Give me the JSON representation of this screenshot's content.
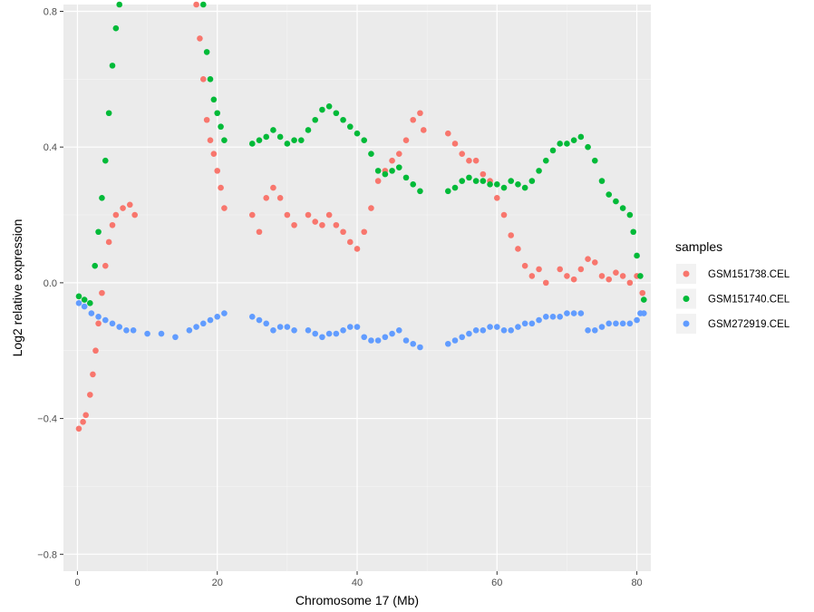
{
  "chart_data": {
    "type": "scatter",
    "xlabel": "Chromosome 17 (Mb)",
    "ylabel": "Log2 relative expression",
    "xlim": [
      -2,
      82
    ],
    "ylim": [
      -0.85,
      0.82
    ],
    "x_ticks": [
      0,
      20,
      40,
      60,
      80
    ],
    "y_ticks": [
      -0.8,
      -0.4,
      0.0,
      0.4,
      0.8
    ],
    "x_tick_labels": [
      "0",
      "20",
      "40",
      "60",
      "80"
    ],
    "y_tick_labels": [
      "−0.8",
      "−0.4",
      "0.0",
      "0.4",
      "0.8"
    ],
    "grid": true,
    "legend": {
      "title": "samples",
      "placement": "right"
    },
    "series": [
      {
        "name": "GSM151738.CEL",
        "color": "#F8766D",
        "points": [
          [
            0.2,
            -0.43
          ],
          [
            0.8,
            -0.41
          ],
          [
            1.2,
            -0.39
          ],
          [
            1.8,
            -0.33
          ],
          [
            2.2,
            -0.27
          ],
          [
            2.6,
            -0.2
          ],
          [
            3.0,
            -0.12
          ],
          [
            3.5,
            -0.03
          ],
          [
            4.0,
            0.05
          ],
          [
            4.5,
            0.12
          ],
          [
            5.0,
            0.17
          ],
          [
            5.5,
            0.2
          ],
          [
            6.5,
            0.22
          ],
          [
            7.5,
            0.23
          ],
          [
            8.2,
            0.2
          ],
          [
            17.0,
            0.82
          ],
          [
            17.5,
            0.72
          ],
          [
            18.0,
            0.6
          ],
          [
            18.5,
            0.48
          ],
          [
            19.0,
            0.42
          ],
          [
            19.5,
            0.38
          ],
          [
            20.0,
            0.33
          ],
          [
            20.5,
            0.28
          ],
          [
            21.0,
            0.22
          ],
          [
            25.0,
            0.2
          ],
          [
            26.0,
            0.15
          ],
          [
            27.0,
            0.25
          ],
          [
            28.0,
            0.28
          ],
          [
            29.0,
            0.25
          ],
          [
            30.0,
            0.2
          ],
          [
            31.0,
            0.17
          ],
          [
            33.0,
            0.2
          ],
          [
            34.0,
            0.18
          ],
          [
            35.0,
            0.17
          ],
          [
            36.0,
            0.2
          ],
          [
            37.0,
            0.17
          ],
          [
            38.0,
            0.15
          ],
          [
            39.0,
            0.12
          ],
          [
            40.0,
            0.1
          ],
          [
            41.0,
            0.15
          ],
          [
            42.0,
            0.22
          ],
          [
            43.0,
            0.3
          ],
          [
            44.0,
            0.33
          ],
          [
            45.0,
            0.36
          ],
          [
            46.0,
            0.38
          ],
          [
            47.0,
            0.42
          ],
          [
            48.0,
            0.48
          ],
          [
            49.0,
            0.5
          ],
          [
            49.5,
            0.45
          ],
          [
            53.0,
            0.44
          ],
          [
            54.0,
            0.41
          ],
          [
            55.0,
            0.38
          ],
          [
            56.0,
            0.36
          ],
          [
            57.0,
            0.36
          ],
          [
            58.0,
            0.32
          ],
          [
            59.0,
            0.3
          ],
          [
            60.0,
            0.25
          ],
          [
            61.0,
            0.2
          ],
          [
            62.0,
            0.14
          ],
          [
            63.0,
            0.1
          ],
          [
            64.0,
            0.05
          ],
          [
            65.0,
            0.02
          ],
          [
            66.0,
            0.04
          ],
          [
            67.0,
            0.0
          ],
          [
            69.0,
            0.04
          ],
          [
            70.0,
            0.02
          ],
          [
            71.0,
            0.01
          ],
          [
            72.0,
            0.04
          ],
          [
            73.0,
            0.07
          ],
          [
            74.0,
            0.06
          ],
          [
            75.0,
            0.02
          ],
          [
            76.0,
            0.01
          ],
          [
            77.0,
            0.03
          ],
          [
            78.0,
            0.02
          ],
          [
            79.0,
            0.0
          ],
          [
            80.0,
            0.02
          ],
          [
            80.8,
            -0.03
          ]
        ]
      },
      {
        "name": "GSM151740.CEL",
        "color": "#00BA38",
        "points": [
          [
            0.2,
            -0.04
          ],
          [
            1.0,
            -0.05
          ],
          [
            1.8,
            -0.06
          ],
          [
            2.5,
            0.05
          ],
          [
            3.0,
            0.15
          ],
          [
            3.5,
            0.25
          ],
          [
            4.0,
            0.36
          ],
          [
            4.5,
            0.5
          ],
          [
            5.0,
            0.64
          ],
          [
            5.5,
            0.75
          ],
          [
            6.0,
            0.82
          ],
          [
            18.0,
            0.82
          ],
          [
            18.5,
            0.68
          ],
          [
            19.0,
            0.6
          ],
          [
            19.5,
            0.54
          ],
          [
            20.0,
            0.5
          ],
          [
            20.5,
            0.46
          ],
          [
            21.0,
            0.42
          ],
          [
            25.0,
            0.41
          ],
          [
            26.0,
            0.42
          ],
          [
            27.0,
            0.43
          ],
          [
            28.0,
            0.45
          ],
          [
            29.0,
            0.43
          ],
          [
            30.0,
            0.41
          ],
          [
            31.0,
            0.42
          ],
          [
            32.0,
            0.42
          ],
          [
            33.0,
            0.45
          ],
          [
            34.0,
            0.48
          ],
          [
            35.0,
            0.51
          ],
          [
            36.0,
            0.52
          ],
          [
            37.0,
            0.5
          ],
          [
            38.0,
            0.48
          ],
          [
            39.0,
            0.46
          ],
          [
            40.0,
            0.44
          ],
          [
            41.0,
            0.42
          ],
          [
            42.0,
            0.38
          ],
          [
            43.0,
            0.33
          ],
          [
            44.0,
            0.32
          ],
          [
            45.0,
            0.33
          ],
          [
            46.0,
            0.34
          ],
          [
            47.0,
            0.31
          ],
          [
            48.0,
            0.29
          ],
          [
            49.0,
            0.27
          ],
          [
            53.0,
            0.27
          ],
          [
            54.0,
            0.28
          ],
          [
            55.0,
            0.3
          ],
          [
            56.0,
            0.31
          ],
          [
            57.0,
            0.3
          ],
          [
            58.0,
            0.3
          ],
          [
            59.0,
            0.29
          ],
          [
            60.0,
            0.29
          ],
          [
            61.0,
            0.28
          ],
          [
            62.0,
            0.3
          ],
          [
            63.0,
            0.29
          ],
          [
            64.0,
            0.28
          ],
          [
            65.0,
            0.3
          ],
          [
            66.0,
            0.33
          ],
          [
            67.0,
            0.36
          ],
          [
            68.0,
            0.39
          ],
          [
            69.0,
            0.41
          ],
          [
            70.0,
            0.41
          ],
          [
            71.0,
            0.42
          ],
          [
            72.0,
            0.43
          ],
          [
            73.0,
            0.4
          ],
          [
            74.0,
            0.36
          ],
          [
            75.0,
            0.3
          ],
          [
            76.0,
            0.26
          ],
          [
            77.0,
            0.24
          ],
          [
            78.0,
            0.22
          ],
          [
            79.0,
            0.2
          ],
          [
            79.5,
            0.15
          ],
          [
            80.0,
            0.08
          ],
          [
            80.5,
            0.02
          ],
          [
            81.0,
            -0.05
          ]
        ]
      },
      {
        "name": "GSM272919.CEL",
        "color": "#619CFF",
        "points": [
          [
            0.2,
            -0.06
          ],
          [
            1.0,
            -0.07
          ],
          [
            2.0,
            -0.09
          ],
          [
            3.0,
            -0.1
          ],
          [
            4.0,
            -0.11
          ],
          [
            5.0,
            -0.12
          ],
          [
            6.0,
            -0.13
          ],
          [
            7.0,
            -0.14
          ],
          [
            8.0,
            -0.14
          ],
          [
            10.0,
            -0.15
          ],
          [
            12.0,
            -0.15
          ],
          [
            14.0,
            -0.16
          ],
          [
            16.0,
            -0.14
          ],
          [
            17.0,
            -0.13
          ],
          [
            18.0,
            -0.12
          ],
          [
            19.0,
            -0.11
          ],
          [
            20.0,
            -0.1
          ],
          [
            21.0,
            -0.09
          ],
          [
            25.0,
            -0.1
          ],
          [
            26.0,
            -0.11
          ],
          [
            27.0,
            -0.12
          ],
          [
            28.0,
            -0.14
          ],
          [
            29.0,
            -0.13
          ],
          [
            30.0,
            -0.13
          ],
          [
            31.0,
            -0.14
          ],
          [
            33.0,
            -0.14
          ],
          [
            34.0,
            -0.15
          ],
          [
            35.0,
            -0.16
          ],
          [
            36.0,
            -0.15
          ],
          [
            37.0,
            -0.15
          ],
          [
            38.0,
            -0.14
          ],
          [
            39.0,
            -0.13
          ],
          [
            40.0,
            -0.13
          ],
          [
            41.0,
            -0.16
          ],
          [
            42.0,
            -0.17
          ],
          [
            43.0,
            -0.17
          ],
          [
            44.0,
            -0.16
          ],
          [
            45.0,
            -0.15
          ],
          [
            46.0,
            -0.14
          ],
          [
            47.0,
            -0.17
          ],
          [
            48.0,
            -0.18
          ],
          [
            49.0,
            -0.19
          ],
          [
            53.0,
            -0.18
          ],
          [
            54.0,
            -0.17
          ],
          [
            55.0,
            -0.16
          ],
          [
            56.0,
            -0.15
          ],
          [
            57.0,
            -0.14
          ],
          [
            58.0,
            -0.14
          ],
          [
            59.0,
            -0.13
          ],
          [
            60.0,
            -0.13
          ],
          [
            61.0,
            -0.14
          ],
          [
            62.0,
            -0.14
          ],
          [
            63.0,
            -0.13
          ],
          [
            64.0,
            -0.12
          ],
          [
            65.0,
            -0.12
          ],
          [
            66.0,
            -0.11
          ],
          [
            67.0,
            -0.1
          ],
          [
            68.0,
            -0.1
          ],
          [
            69.0,
            -0.1
          ],
          [
            70.0,
            -0.09
          ],
          [
            71.0,
            -0.09
          ],
          [
            72.0,
            -0.09
          ],
          [
            73.0,
            -0.14
          ],
          [
            74.0,
            -0.14
          ],
          [
            75.0,
            -0.13
          ],
          [
            76.0,
            -0.12
          ],
          [
            77.0,
            -0.12
          ],
          [
            78.0,
            -0.12
          ],
          [
            79.0,
            -0.12
          ],
          [
            80.0,
            -0.11
          ],
          [
            80.5,
            -0.09
          ],
          [
            81.0,
            -0.09
          ]
        ]
      }
    ]
  }
}
